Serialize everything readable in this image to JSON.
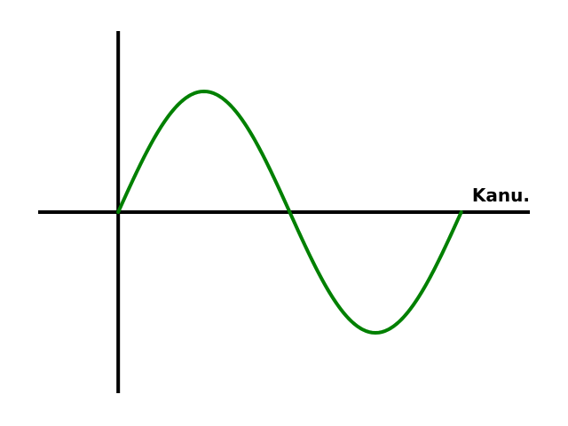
{
  "chart_data": {
    "type": "line",
    "title": "",
    "xlabel": "Kanu.",
    "ylabel": "",
    "xlim": [
      -0.7,
      3.6
    ],
    "ylim": [
      -1.5,
      1.5
    ],
    "grid": false,
    "legend": "none",
    "series": [
      {
        "color": "#008000",
        "x": [
          0,
          0.125,
          0.25,
          0.375,
          0.5,
          0.625,
          0.75,
          0.875,
          1.0,
          1.125,
          1.25,
          1.375,
          1.5,
          1.625,
          1.75,
          1.875,
          2.0,
          2.125,
          2.25,
          2.375,
          2.5,
          2.625,
          2.75,
          2.875,
          3.0
        ],
        "y": [
          0,
          0.259,
          0.5,
          0.707,
          0.866,
          0.966,
          1.0,
          0.966,
          0.866,
          0.707,
          0.5,
          0.259,
          0,
          -0.259,
          -0.5,
          -0.707,
          -0.866,
          -0.966,
          -1.0,
          -0.966,
          -0.866,
          -0.707,
          -0.5,
          -0.259,
          0
        ]
      }
    ]
  },
  "colors": {
    "axis": "#000000",
    "line": "#008000"
  }
}
